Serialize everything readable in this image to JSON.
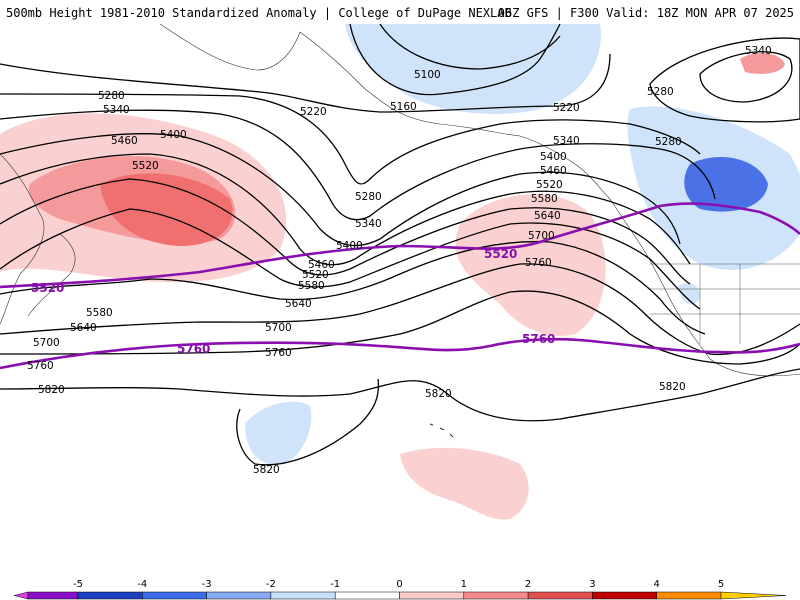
{
  "header": {
    "title_left": "500mb Height 1981-2010 Standardized Anomaly | College of DuPage NEXLAB",
    "title_right": "06Z GFS | F300 Valid: 18Z MON APR 07 2025"
  },
  "contour_labels": {
    "c5340_ne": "5340",
    "c5280_ne": "5280",
    "c5100": "5100",
    "c5160": "5160",
    "c5220_n": "5220",
    "c5220_c": "5220",
    "c5280_w": "5280",
    "c5340_w": "5340",
    "c5400_w": "5400",
    "c5460_w": "5460",
    "c5520_w": "5520",
    "c5280_c": "5280",
    "c5340_c": "5340",
    "c5400_c": "5400",
    "c5460_c": "5460",
    "c5520_c": "5520",
    "c5580_c": "5580",
    "c5640_c": "5640",
    "c5700_c": "5700",
    "c5280_e": "5280",
    "c5340_e": "5340",
    "c5400_e": "5400",
    "c5460_e": "5460",
    "c5520_e": "5520",
    "c5580_e": "5580",
    "c5640_e": "5640",
    "c5700_e": "5700",
    "c5760_e": "5760",
    "c5580_w": "5580",
    "c5640_w": "5640",
    "c5700_w": "5700",
    "c5760_w": "5760",
    "c5760_c": "5760",
    "c5820_w": "5820",
    "c5820_c": "5820",
    "c5820_e": "5820",
    "c5820_s": "5820"
  },
  "climo_labels": {
    "p5520_w": "5520",
    "p5520_c": "5520",
    "p5760_w": "5760",
    "p5760_c": "5760"
  },
  "legend": {
    "ticks": [
      "-5",
      "-4",
      "-3",
      "-2",
      "-1",
      "0",
      "1",
      "2",
      "3",
      "4",
      "5"
    ],
    "colors": [
      "#e040e0",
      "#8a10c8",
      "#1a40c0",
      "#3a6ee8",
      "#88aaf0",
      "#c8e0fb",
      "#ffffff",
      "#fbcaca",
      "#f58b8b",
      "#e05050",
      "#c00000",
      "#ff8c00",
      "#ffd000"
    ]
  },
  "colors": {
    "anom_pos_light": "#fbd0d0",
    "anom_pos_mid": "#f59a9a",
    "anom_pos_strong": "#f07070",
    "anom_neg_light": "#cfe4fa",
    "anom_neg_strong": "#4a72e6",
    "climo_line": "#8a0fb0"
  }
}
